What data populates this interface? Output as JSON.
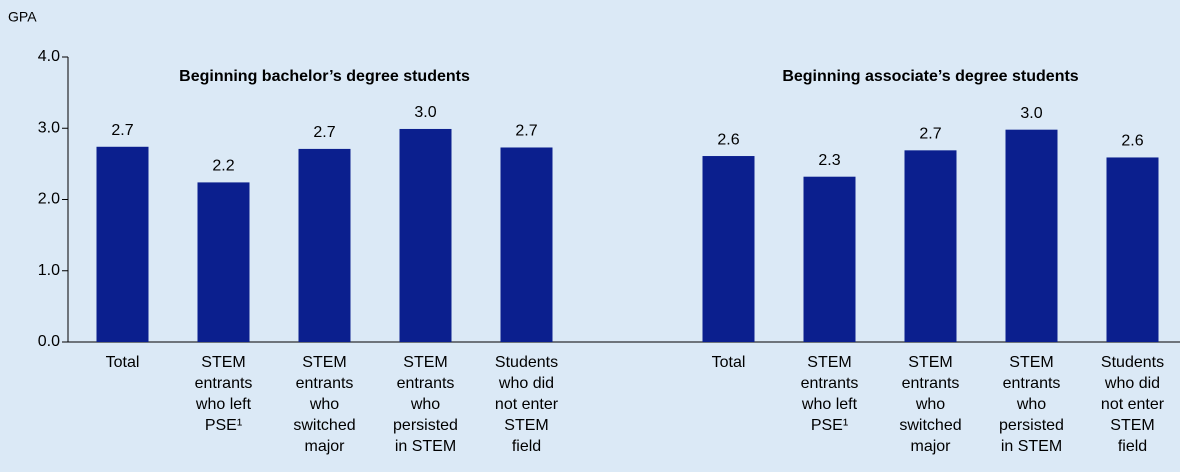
{
  "chart_data": {
    "type": "bar",
    "y_axis_label": "GPA",
    "color": "#0b1f8e",
    "ylim": [
      0,
      4
    ],
    "yticks": [
      {
        "value": 0,
        "label": "0.0"
      },
      {
        "value": 1,
        "label": "1.0"
      },
      {
        "value": 2,
        "label": "2.0"
      },
      {
        "value": 3,
        "label": "3.0"
      },
      {
        "value": 4,
        "label": "4.0"
      }
    ],
    "groups": [
      {
        "name": "Beginning bachelor’s degree students",
        "categories": [
          [
            "Total"
          ],
          [
            "STEM",
            "entrants",
            "who left",
            "PSE¹"
          ],
          [
            "STEM",
            "entrants",
            "who",
            "switched",
            "major"
          ],
          [
            "STEM",
            "entrants",
            "who",
            "persisted",
            "in STEM"
          ],
          [
            "Students",
            "who did",
            "not enter",
            "STEM",
            "field"
          ]
        ],
        "values": [
          2.74,
          2.24,
          2.71,
          2.99,
          2.73
        ],
        "value_labels": [
          "2.7",
          "2.2",
          "2.7",
          "3.0",
          "2.7"
        ]
      },
      {
        "name": "Beginning associate’s degree students",
        "categories": [
          [
            "Total"
          ],
          [
            "STEM",
            "entrants",
            "who left",
            "PSE¹"
          ],
          [
            "STEM",
            "entrants",
            "who",
            "switched",
            "major"
          ],
          [
            "STEM",
            "entrants",
            "who",
            "persisted",
            "in STEM"
          ],
          [
            "Students",
            "who did",
            "not enter",
            "STEM",
            "field"
          ]
        ],
        "values": [
          2.61,
          2.32,
          2.69,
          2.98,
          2.59
        ],
        "value_labels": [
          "2.6",
          "2.3",
          "2.7",
          "3.0",
          "2.6"
        ]
      }
    ]
  }
}
